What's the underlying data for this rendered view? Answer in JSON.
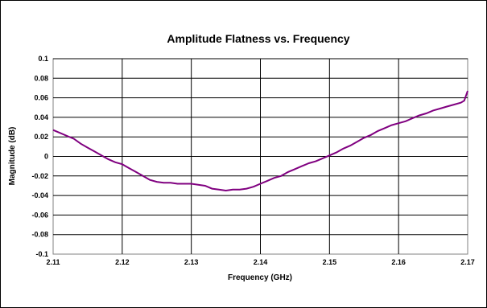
{
  "chart_data": {
    "type": "line",
    "title": "Amplitude Flatness vs. Frequency",
    "xlabel": "Frequency (GHz)",
    "ylabel": "Magnitude (dB)",
    "xlim": [
      2.11,
      2.17
    ],
    "ylim": [
      -0.1,
      0.1
    ],
    "x_ticks": [
      "2.11",
      "2.12",
      "2.13",
      "2.14",
      "2.15",
      "2.16",
      "2.17"
    ],
    "y_ticks": [
      "0.1",
      "0.08",
      "0.06",
      "0.04",
      "0.02",
      "0",
      "-0.02",
      "-0.04",
      "-0.06",
      "-0.08",
      "-0.1"
    ],
    "grid": true,
    "legend": "none",
    "colors": {
      "line": "#800080",
      "plot_area": "#ffffff",
      "frame": "#000000"
    },
    "series": [
      {
        "x": [
          2.11,
          2.111,
          2.112,
          2.113,
          2.114,
          2.115,
          2.116,
          2.117,
          2.118,
          2.119,
          2.12,
          2.121,
          2.122,
          2.123,
          2.124,
          2.125,
          2.126,
          2.127,
          2.128,
          2.129,
          2.13,
          2.131,
          2.132,
          2.133,
          2.134,
          2.135,
          2.136,
          2.137,
          2.138,
          2.139,
          2.14,
          2.141,
          2.142,
          2.143,
          2.144,
          2.145,
          2.146,
          2.147,
          2.148,
          2.149,
          2.15,
          2.151,
          2.152,
          2.153,
          2.154,
          2.155,
          2.156,
          2.157,
          2.158,
          2.159,
          2.16,
          2.161,
          2.162,
          2.163,
          2.164,
          2.165,
          2.166,
          2.167,
          2.168,
          2.169,
          2.1695,
          2.17
        ],
        "values": [
          0.027,
          0.024,
          0.021,
          0.018,
          0.013,
          0.009,
          0.005,
          0.001,
          -0.003,
          -0.006,
          -0.008,
          -0.012,
          -0.016,
          -0.02,
          -0.024,
          -0.026,
          -0.027,
          -0.027,
          -0.028,
          -0.028,
          -0.028,
          -0.029,
          -0.03,
          -0.033,
          -0.034,
          -0.035,
          -0.034,
          -0.034,
          -0.033,
          -0.031,
          -0.028,
          -0.025,
          -0.022,
          -0.02,
          -0.016,
          -0.013,
          -0.01,
          -0.007,
          -0.005,
          -0.002,
          0.001,
          0.004,
          0.008,
          0.011,
          0.015,
          0.019,
          0.022,
          0.026,
          0.029,
          0.032,
          0.034,
          0.036,
          0.039,
          0.042,
          0.044,
          0.047,
          0.049,
          0.051,
          0.053,
          0.055,
          0.057,
          0.067
        ]
      }
    ]
  }
}
